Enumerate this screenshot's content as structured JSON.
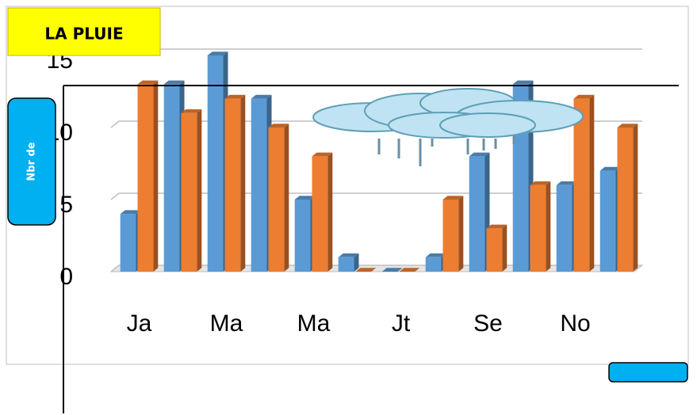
{
  "chart_data": {
    "type": "bar3d",
    "title": "LA PLUIE",
    "ylabel": "Nbr de",
    "categories": [
      "Ja",
      null,
      "Ma",
      null,
      "Ma",
      null,
      "Jt",
      null,
      "Se",
      null,
      "No",
      null
    ],
    "series": [
      {
        "color": "#5b9bd5",
        "values": [
          4,
          13,
          15,
          12,
          5,
          1,
          0,
          1,
          8,
          13,
          6,
          7
        ]
      },
      {
        "color": "#ed7d31",
        "values": [
          13,
          11,
          12,
          10,
          8,
          0,
          0,
          5,
          3,
          6,
          12,
          10
        ]
      }
    ],
    "ylim": [
      0,
      15
    ],
    "yticks": [
      0,
      5,
      10,
      15
    ],
    "grid": true
  }
}
